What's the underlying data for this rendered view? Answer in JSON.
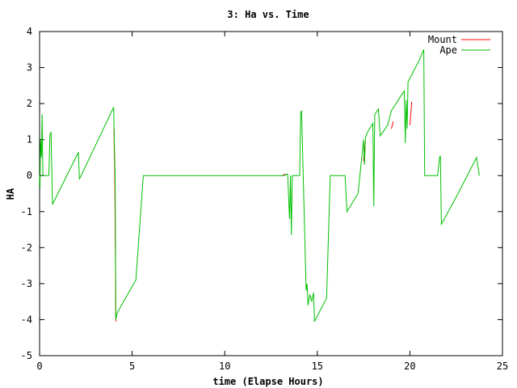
{
  "chart_data": {
    "type": "line",
    "title": "3: Ha vs. Time",
    "xlabel": "time (Elapse Hours)",
    "ylabel": "HA",
    "xlim": [
      0,
      25
    ],
    "ylim": [
      -5,
      4
    ],
    "xticks": [
      0,
      5,
      10,
      15,
      20,
      25
    ],
    "yticks": [
      -5,
      -4,
      -3,
      -2,
      -1,
      0,
      1,
      2,
      3,
      4
    ],
    "grid": false,
    "legend": "top-right",
    "series": [
      {
        "name": "Mount",
        "color": "#ff0000",
        "points": [
          [
            4.02,
            1.3
          ],
          [
            4.04,
            0.5
          ],
          [
            4.06,
            0.1
          ],
          [
            4.08,
            -1.3
          ],
          [
            4.1,
            -2.6
          ],
          [
            4.12,
            -4.05
          ],
          [
            13.1,
            0.0
          ],
          [
            13.2,
            0.02
          ],
          [
            13.3,
            0.04
          ],
          [
            17.5,
            0.4
          ],
          [
            17.55,
            0.7
          ],
          [
            17.6,
            0.95
          ],
          [
            19.0,
            1.3
          ],
          [
            19.1,
            1.5
          ],
          [
            20.0,
            1.4
          ],
          [
            20.05,
            1.7
          ],
          [
            20.1,
            2.05
          ]
        ]
      },
      {
        "name": "Ape",
        "color": "#00c000",
        "points": [
          [
            0.0,
            0.0
          ],
          [
            0.02,
            -0.35
          ],
          [
            0.05,
            1.0
          ],
          [
            0.1,
            0.5
          ],
          [
            0.14,
            1.7
          ],
          [
            0.18,
            0.0
          ],
          [
            0.5,
            0.0
          ],
          [
            0.56,
            1.15
          ],
          [
            0.62,
            1.2
          ],
          [
            0.7,
            -0.8
          ],
          [
            2.05,
            0.6
          ],
          [
            2.1,
            0.65
          ],
          [
            2.15,
            -0.1
          ],
          [
            4.0,
            1.9
          ],
          [
            4.05,
            0.6
          ],
          [
            4.08,
            0.05
          ],
          [
            4.12,
            -4.0
          ],
          [
            4.2,
            -3.8
          ],
          [
            5.2,
            -2.9
          ],
          [
            5.6,
            0.0
          ],
          [
            12.8,
            0.0
          ],
          [
            13.2,
            0.0
          ],
          [
            13.4,
            0.05
          ],
          [
            13.5,
            -1.2
          ],
          [
            13.55,
            0.0
          ],
          [
            13.6,
            -1.65
          ],
          [
            13.65,
            0.0
          ],
          [
            14.05,
            0.0
          ],
          [
            14.1,
            1.75
          ],
          [
            14.15,
            1.8
          ],
          [
            14.4,
            -3.2
          ],
          [
            14.45,
            -3.0
          ],
          [
            14.5,
            -3.6
          ],
          [
            14.6,
            -3.3
          ],
          [
            14.7,
            -3.5
          ],
          [
            14.8,
            -3.25
          ],
          [
            14.85,
            -4.05
          ],
          [
            15.0,
            -3.9
          ],
          [
            15.5,
            -3.4
          ],
          [
            15.7,
            0.0
          ],
          [
            16.5,
            0.0
          ],
          [
            16.6,
            -1.0
          ],
          [
            17.2,
            -0.5
          ],
          [
            17.5,
            1.0
          ],
          [
            17.55,
            0.3
          ],
          [
            17.6,
            1.05
          ],
          [
            17.7,
            1.2
          ],
          [
            18.0,
            1.45
          ],
          [
            18.05,
            -0.85
          ],
          [
            18.1,
            1.7
          ],
          [
            18.3,
            1.85
          ],
          [
            18.4,
            1.1
          ],
          [
            18.8,
            1.4
          ],
          [
            19.0,
            1.8
          ],
          [
            19.5,
            2.2
          ],
          [
            19.7,
            2.35
          ],
          [
            19.75,
            0.9
          ],
          [
            19.8,
            2.1
          ],
          [
            19.85,
            1.3
          ],
          [
            19.9,
            2.6
          ],
          [
            20.5,
            3.2
          ],
          [
            20.75,
            3.5
          ],
          [
            20.8,
            0.0
          ],
          [
            21.5,
            0.0
          ],
          [
            21.6,
            0.5
          ],
          [
            21.65,
            0.55
          ],
          [
            21.7,
            -1.35
          ],
          [
            22.6,
            -0.5
          ],
          [
            23.5,
            0.4
          ],
          [
            23.6,
            0.5
          ],
          [
            23.75,
            0.0
          ]
        ]
      }
    ]
  }
}
